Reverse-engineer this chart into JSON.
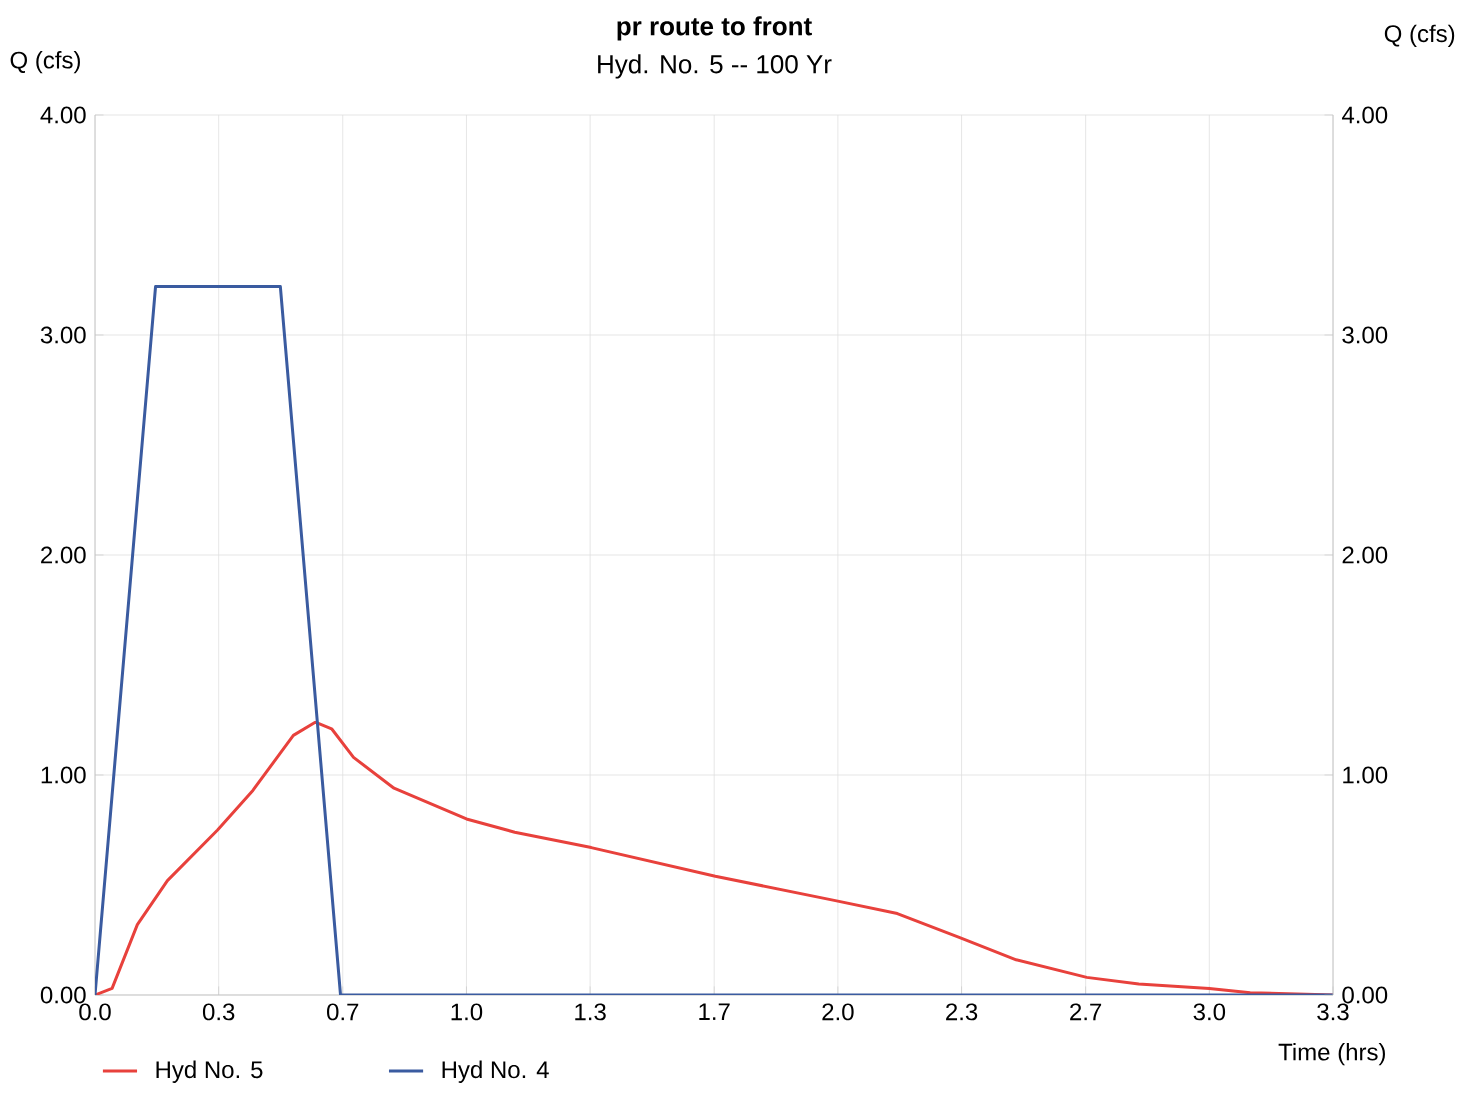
{
  "chart_data": {
    "type": "line",
    "title": "pr route to front",
    "subtitle": "Hyd. No. 5 -- 100 Yr",
    "xlabel": "Time (hrs)",
    "ylabel": "Q (cfs)",
    "y2label": "Q (cfs)",
    "xlim": [
      0,
      3.333
    ],
    "xticks": [
      {
        "value": 0,
        "label": "0.0"
      },
      {
        "value": 0.333,
        "label": "0.3"
      },
      {
        "value": 0.667,
        "label": "0.7"
      },
      {
        "value": 1.0,
        "label": "1.0"
      },
      {
        "value": 1.333,
        "label": "1.3"
      },
      {
        "value": 1.667,
        "label": "1.7"
      },
      {
        "value": 2.0,
        "label": "2.0"
      },
      {
        "value": 2.333,
        "label": "2.3"
      },
      {
        "value": 2.667,
        "label": "2.7"
      },
      {
        "value": 3.0,
        "label": "3.0"
      },
      {
        "value": 3.333,
        "label": "3.3"
      }
    ],
    "ylim": [
      0,
      4
    ],
    "yticks": [
      {
        "value": 0,
        "label": "0.00"
      },
      {
        "value": 1,
        "label": "1.00"
      },
      {
        "value": 2,
        "label": "2.00"
      },
      {
        "value": 3,
        "label": "3.00"
      },
      {
        "value": 4,
        "label": "4.00"
      }
    ],
    "y2lim": [
      0,
      4
    ],
    "y2ticks": [
      {
        "value": 0,
        "label": "0.00"
      },
      {
        "value": 1,
        "label": "1.00"
      },
      {
        "value": 2,
        "label": "2.00"
      },
      {
        "value": 3,
        "label": "3.00"
      },
      {
        "value": 4,
        "label": "4.00"
      }
    ],
    "grid": true,
    "legend": "bottom",
    "marker": "none",
    "line_style": "solid",
    "series": [
      {
        "name": "Hyd No. 5",
        "color": "#e8413c",
        "x": [
          0,
          0.046,
          0.114,
          0.195,
          0.33,
          0.425,
          0.534,
          0.593,
          0.637,
          0.696,
          0.805,
          1.0,
          1.13,
          1.336,
          1.67,
          1.99,
          2.16,
          2.33,
          2.48,
          2.67,
          2.81,
          3.0,
          3.11,
          3.333
        ],
        "values": [
          0,
          0.03,
          0.32,
          0.52,
          0.75,
          0.93,
          1.18,
          1.24,
          1.21,
          1.08,
          0.94,
          0.8,
          0.74,
          0.67,
          0.54,
          0.43,
          0.37,
          0.26,
          0.16,
          0.08,
          0.05,
          0.03,
          0.01,
          0.0
        ]
      },
      {
        "name": "Hyd No. 4",
        "color": "#3a5ba0",
        "x": [
          0,
          0.163,
          0.499,
          0.661,
          3.333
        ],
        "values": [
          0,
          3.22,
          3.22,
          0,
          0
        ]
      }
    ]
  }
}
